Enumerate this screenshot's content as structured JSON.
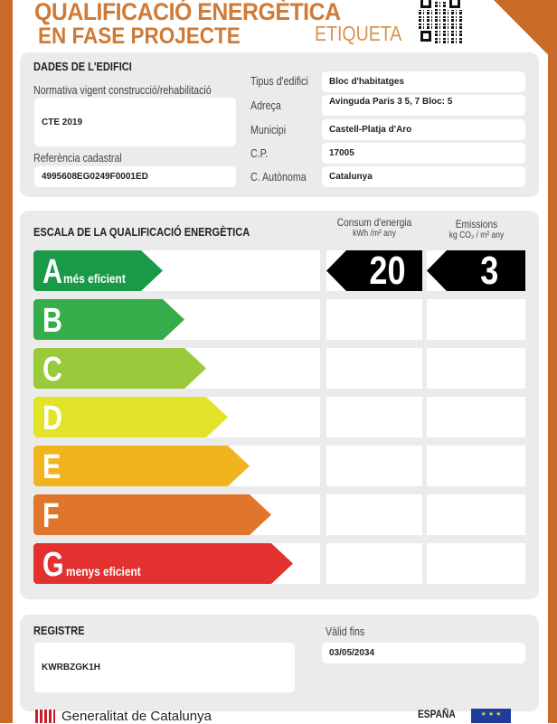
{
  "header": {
    "title_line1": "QUALIFICACIÓ ENERGÈTICA",
    "title_line2": "EN FASE PROJECTE",
    "label": "ETIQUETA"
  },
  "building": {
    "heading": "DADES DE L'EDIFICI",
    "normativa_label": "Normativa vigent construcció/rehabilitació",
    "normativa": "CTE 2019",
    "ref_label": "Referència cadastral",
    "ref": "4995608EG0249F0001ED",
    "fields": [
      {
        "label": "Tipus d'edifici",
        "value": "Bloc d'habitatges"
      },
      {
        "label": "Adreça",
        "value": "Avinguda Paris 3 5, 7 Bloc: 5"
      },
      {
        "label": "Municipi",
        "value": "Castell-Platja d'Aro"
      },
      {
        "label": "C.P.",
        "value": "17005"
      },
      {
        "label": "C. Autònoma",
        "value": "Catalunya"
      }
    ]
  },
  "scale": {
    "heading": "ESCALA DE LA QUALIFICACIÓ ENERGÈTICA",
    "col1_title": "Consum d'energia",
    "col1_unit": "kWh /m² any",
    "col2_title": "Emissions",
    "col2_unit": "kg CO₂ / m² any",
    "classes": [
      {
        "letter": "A",
        "text": "més eficient",
        "color": "#1a9a48"
      },
      {
        "letter": "B",
        "text": "",
        "color": "#35ad4a"
      },
      {
        "letter": "C",
        "text": "",
        "color": "#9bc93c"
      },
      {
        "letter": "D",
        "text": "",
        "color": "#e3e42a"
      },
      {
        "letter": "E",
        "text": "",
        "color": "#f0b41e"
      },
      {
        "letter": "F",
        "text": "",
        "color": "#e0762b"
      },
      {
        "letter": "G",
        "text": "menys eficient",
        "color": "#e2312e"
      }
    ],
    "rating": "A",
    "energy": "20",
    "emissions": "3"
  },
  "registre": {
    "heading": "REGISTRE",
    "code": "KWRBZGK1H",
    "valid_label": "Vàlid fins",
    "valid": "03/05/2034"
  },
  "footer": {
    "generalitat": "Generalitat de Catalunya",
    "espana": "ESPAÑA"
  },
  "colors": {
    "brand": "#c96a28"
  }
}
